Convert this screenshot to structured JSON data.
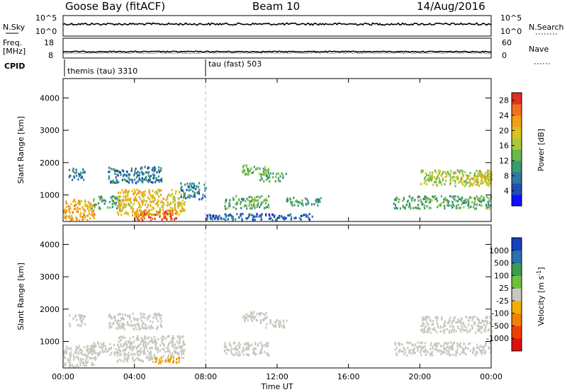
{
  "header": {
    "site": "Goose Bay (fitACF)",
    "beam": "Beam 10",
    "date": "14/Aug/2016"
  },
  "noise_panel": {
    "left_label": "N.Sky",
    "right_label": "N.Search",
    "left_ticks": [
      "10^5",
      "10^0"
    ],
    "right_ticks": [
      "10^5",
      "10^0"
    ]
  },
  "freq_panel": {
    "left_label_line1": "Freq.",
    "left_label_line2": "[MHz]",
    "right_label": "Nave",
    "left_ticks": [
      "18",
      "8"
    ],
    "right_ticks": [
      "60",
      "0"
    ]
  },
  "cpid": {
    "label": "CPID",
    "segments": [
      {
        "text": "themis (tau) 3310",
        "start_hour": 0
      },
      {
        "text": "tau (fast) 503",
        "start_hour": 8
      }
    ]
  },
  "x_axis": {
    "label": "Time UT",
    "ticks": [
      "00:00",
      "04:00",
      "08:00",
      "12:00",
      "16:00",
      "20:00",
      "00:00"
    ]
  },
  "chart_data": [
    {
      "type": "heatmap",
      "title": "",
      "xlabel": "Time UT",
      "ylabel": "Slant Range [km]",
      "xlim_hours": [
        0,
        24
      ],
      "ylim_km": [
        180,
        4600
      ],
      "yticks": [
        "1000",
        "2000",
        "3000",
        "4000"
      ],
      "colorbar": {
        "label": "Power [dB]",
        "ticks": [
          "4",
          "8",
          "12",
          "16",
          "20",
          "24",
          "28"
        ],
        "range": [
          0,
          30
        ],
        "colors": [
          "#1010ff",
          "#1f4fb0",
          "#2e78a0",
          "#3a9a70",
          "#6ab84a",
          "#a8c83a",
          "#e0c020",
          "#f0a010",
          "#f07020",
          "#e03020"
        ]
      },
      "echo_regions": [
        {
          "t0": 0.0,
          "t1": 1.8,
          "r0": 250,
          "r1": 900,
          "value": 22
        },
        {
          "t0": 0.3,
          "t1": 1.2,
          "r0": 1500,
          "r1": 1850,
          "value": 8
        },
        {
          "t0": 1.5,
          "t1": 3.2,
          "r0": 600,
          "r1": 1000,
          "value": 12
        },
        {
          "t0": 2.5,
          "t1": 5.5,
          "r0": 1400,
          "r1": 1900,
          "value": 8
        },
        {
          "t0": 3.0,
          "t1": 6.8,
          "r0": 400,
          "r1": 1200,
          "value": 20
        },
        {
          "t0": 4.0,
          "t1": 6.5,
          "r0": 250,
          "r1": 550,
          "value": 26
        },
        {
          "t0": 6.5,
          "t1": 8.0,
          "r0": 900,
          "r1": 1400,
          "value": 8
        },
        {
          "t0": 8.0,
          "t1": 14.0,
          "r0": 250,
          "r1": 450,
          "value": 6
        },
        {
          "t0": 9.0,
          "t1": 11.5,
          "r0": 600,
          "r1": 1000,
          "value": 12
        },
        {
          "t0": 10.0,
          "t1": 11.5,
          "r0": 1650,
          "r1": 1950,
          "value": 14
        },
        {
          "t0": 11.0,
          "t1": 12.5,
          "r0": 1450,
          "r1": 1700,
          "value": 12
        },
        {
          "t0": 12.5,
          "t1": 14.5,
          "r0": 700,
          "r1": 950,
          "value": 10
        },
        {
          "t0": 18.5,
          "t1": 24.0,
          "r0": 600,
          "r1": 1000,
          "value": 12
        },
        {
          "t0": 20.0,
          "t1": 24.0,
          "r0": 1300,
          "r1": 1800,
          "value": 16
        },
        {
          "t0": 22.5,
          "t1": 24.0,
          "r0": 1350,
          "r1": 1650,
          "value": 20
        }
      ]
    },
    {
      "type": "heatmap",
      "title": "",
      "xlabel": "Time UT",
      "ylabel": "Slant Range [km]",
      "xlim_hours": [
        0,
        24
      ],
      "ylim_km": [
        180,
        4600
      ],
      "yticks": [
        "1000",
        "2000",
        "3000",
        "4000"
      ],
      "colorbar": {
        "label": "Velocity [m s^-1]",
        "ticks": [
          "1000",
          "500",
          "100",
          "25",
          "-25",
          "-100",
          "-500",
          "-1000"
        ],
        "colors": [
          "#1840c0",
          "#2a70b0",
          "#3a9a50",
          "#70c040",
          "#c8c8c0",
          "#f0b000",
          "#f08000",
          "#f04000",
          "#e01010"
        ]
      },
      "echo_regions": [
        {
          "t0": 0.0,
          "t1": 1.8,
          "r0": 250,
          "r1": 900,
          "value": 0
        },
        {
          "t0": 0.3,
          "t1": 1.2,
          "r0": 1500,
          "r1": 1850,
          "value": 0
        },
        {
          "t0": 1.5,
          "t1": 3.2,
          "r0": 600,
          "r1": 1000,
          "value": 0
        },
        {
          "t0": 2.5,
          "t1": 5.5,
          "r0": 1400,
          "r1": 1900,
          "value": 0
        },
        {
          "t0": 3.0,
          "t1": 6.8,
          "r0": 400,
          "r1": 1200,
          "value": 0
        },
        {
          "t0": 5.0,
          "t1": 6.5,
          "r0": 350,
          "r1": 550,
          "value": -100
        },
        {
          "t0": 9.0,
          "t1": 11.5,
          "r0": 600,
          "r1": 1000,
          "value": 0
        },
        {
          "t0": 10.0,
          "t1": 11.5,
          "r0": 1650,
          "r1": 1950,
          "value": 0
        },
        {
          "t0": 11.0,
          "t1": 12.5,
          "r0": 1450,
          "r1": 1700,
          "value": 0
        },
        {
          "t0": 18.5,
          "t1": 24.0,
          "r0": 600,
          "r1": 1000,
          "value": 0
        },
        {
          "t0": 20.0,
          "t1": 24.0,
          "r0": 1300,
          "r1": 1800,
          "value": 0
        }
      ]
    }
  ]
}
